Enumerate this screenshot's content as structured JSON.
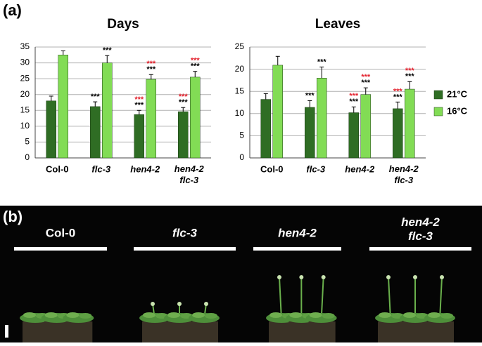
{
  "panels": {
    "a": "(a)",
    "b": "(b)"
  },
  "chart_data": [
    {
      "type": "bar",
      "title": "Days",
      "categories": [
        "Col-0",
        "flc-3",
        "hen4-2",
        "hen4-2 flc-3"
      ],
      "ylim": [
        0,
        35
      ],
      "yticks": [
        0,
        5,
        10,
        15,
        20,
        25,
        30,
        35
      ],
      "grid": true,
      "series": [
        {
          "color": "#2f6d24",
          "values": [
            18,
            16.2,
            13.7,
            14.6
          ],
          "errors": [
            1.5,
            1.5,
            1.3,
            1.3
          ],
          "significance": [
            {
              "color": "#000000",
              "labels": [
                null,
                "***",
                "***",
                "***"
              ]
            },
            {
              "color": "#e3202c",
              "labels": [
                null,
                null,
                "***",
                "***"
              ]
            }
          ]
        },
        {
          "color": "#82dc55",
          "values": [
            32.5,
            30,
            24.8,
            25.5
          ],
          "errors": [
            1.3,
            2.3,
            1.5,
            1.8
          ],
          "significance": [
            {
              "color": "#000000",
              "labels": [
                null,
                "***",
                "***",
                "***"
              ]
            },
            {
              "color": "#e3202c",
              "labels": [
                null,
                null,
                "***",
                "***"
              ]
            }
          ]
        }
      ]
    },
    {
      "type": "bar",
      "title": "Leaves",
      "categories": [
        "Col-0",
        "flc-3",
        "hen4-2",
        "hen4-2 flc-3"
      ],
      "ylim": [
        0,
        25
      ],
      "yticks": [
        0,
        5,
        10,
        15,
        20,
        25
      ],
      "grid": true,
      "legend": "right",
      "series": [
        {
          "name": "21°C",
          "color": "#2f6d24",
          "values": [
            13.2,
            11.4,
            10.2,
            11.1
          ],
          "errors": [
            1.3,
            1.5,
            1.3,
            1.5
          ],
          "significance": [
            {
              "color": "#000000",
              "labels": [
                null,
                "***",
                "***",
                "***"
              ]
            },
            {
              "color": "#e3202c",
              "labels": [
                null,
                null,
                "***",
                "***"
              ]
            }
          ]
        },
        {
          "name": "16°C",
          "color": "#82dc55",
          "values": [
            20.9,
            18,
            14.3,
            15.5
          ],
          "errors": [
            2,
            2.5,
            1.5,
            1.7
          ],
          "significance": [
            {
              "color": "#000000",
              "labels": [
                null,
                "***",
                "***",
                "***"
              ]
            },
            {
              "color": "#e3202c",
              "labels": [
                null,
                null,
                "***",
                "***"
              ]
            }
          ]
        }
      ]
    }
  ],
  "photo": {
    "genotypes": [
      "Col-0",
      "flc-3",
      "hen4-2",
      "hen4-2 flc-3"
    ]
  }
}
